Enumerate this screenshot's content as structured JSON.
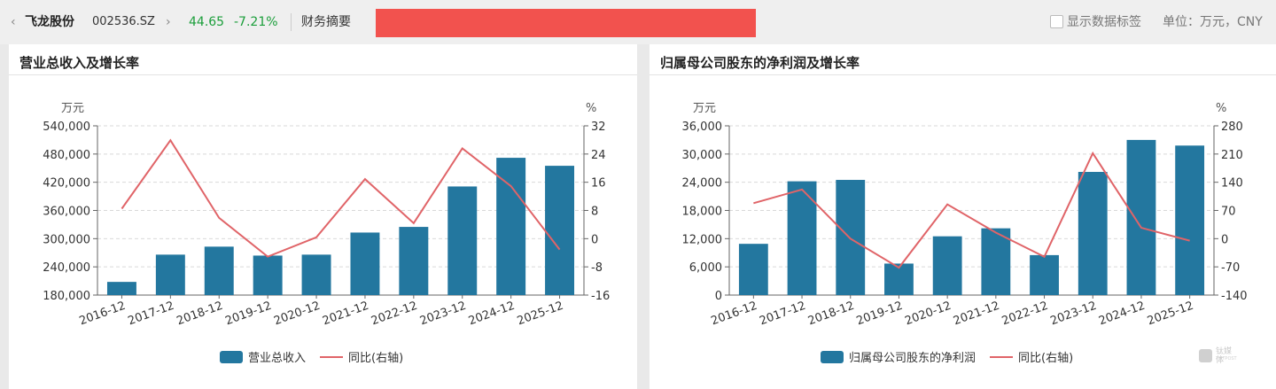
{
  "header": {
    "back_icon": "‹",
    "company_name": "飞龙股份",
    "stock_code": "002536.SZ",
    "forward_icon": "›",
    "price": "44.65",
    "change_pct": "-7.21%",
    "summary_label": "财务摘要",
    "show_labels_text": "显示数据标签",
    "unit_text": "单位：万元，CNY"
  },
  "colors": {
    "bar": "#23779f",
    "line": "#e06468",
    "grid": "#d9d9d9",
    "down": "#1a9e3a",
    "redaction": "#f2524e"
  },
  "watermark": {
    "text": "钛媒体",
    "sub": "TMTPOST"
  },
  "chart_data": [
    {
      "type": "bar",
      "title": "营业总收入及增长率",
      "left_unit": "万元",
      "right_unit": "%",
      "categories": [
        "2016-12",
        "2017-12",
        "2018-12",
        "2019-12",
        "2020-12",
        "2021-12",
        "2022-12",
        "2023-12",
        "2024-12",
        "2025-12"
      ],
      "series": [
        {
          "name": "营业总收入",
          "kind": "bar",
          "axis": "left",
          "values": [
            208000,
            266000,
            283000,
            264000,
            266000,
            313000,
            325000,
            411000,
            472000,
            455000
          ]
        },
        {
          "name": "同比(右轴)",
          "kind": "line",
          "axis": "right",
          "values": [
            8.5,
            27.9,
            5.9,
            -5.1,
            0.4,
            16.9,
            4.4,
            25.6,
            14.9,
            -3.1
          ]
        }
      ],
      "ylim_left": [
        180000,
        540000
      ],
      "yticks_left": [
        "180,000",
        "240,000",
        "300,000",
        "360,000",
        "420,000",
        "480,000",
        "540,000"
      ],
      "ylim_right": [
        -16,
        32
      ],
      "yticks_right": [
        "-16",
        "-8",
        "0",
        "8",
        "16",
        "24",
        "32"
      ],
      "grid": true,
      "legend": "bottom"
    },
    {
      "type": "bar",
      "title": "归属母公司股东的净利润及增长率",
      "left_unit": "万元",
      "right_unit": "%",
      "categories": [
        "2016-12",
        "2017-12",
        "2018-12",
        "2019-12",
        "2020-12",
        "2021-12",
        "2022-12",
        "2023-12",
        "2024-12",
        "2025-12"
      ],
      "series": [
        {
          "name": "归属母公司股东的净利润",
          "kind": "bar",
          "axis": "left",
          "values": [
            10900,
            24200,
            24500,
            6700,
            12500,
            14200,
            8500,
            26200,
            33000,
            31800
          ]
        },
        {
          "name": "同比(右轴)",
          "kind": "line",
          "axis": "right",
          "values": [
            88,
            122,
            0,
            -72,
            85,
            15,
            -45,
            212,
            27,
            -5
          ]
        }
      ],
      "ylim_left": [
        0,
        36000
      ],
      "yticks_left": [
        "0",
        "6,000",
        "12,000",
        "18,000",
        "24,000",
        "30,000",
        "36,000"
      ],
      "ylim_right": [
        -140,
        280
      ],
      "yticks_right": [
        "-140",
        "-70",
        "0",
        "70",
        "140",
        "210",
        "280"
      ],
      "grid": true,
      "legend": "bottom"
    }
  ]
}
